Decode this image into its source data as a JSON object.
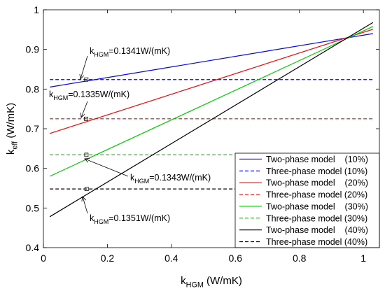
{
  "chart_data": {
    "type": "line",
    "xlabel": {
      "main": "k",
      "sub": "HGM",
      "unit": " (W/mK)"
    },
    "ylabel": {
      "main": "k",
      "sub": "eff",
      "unit": " (W/mK)"
    },
    "xlim": [
      0,
      1.05
    ],
    "ylim": [
      0.4,
      1.0
    ],
    "xticks": [
      0,
      0.2,
      0.4,
      0.6,
      0.8,
      1
    ],
    "xtick_labels": [
      "0",
      "0.2",
      "0.4",
      "0.6",
      "0.8",
      "1"
    ],
    "yticks": [
      0.4,
      0.5,
      0.6,
      0.7,
      0.8,
      0.9,
      1.0
    ],
    "ytick_labels": [
      "0.4",
      "0.5",
      "0.6",
      "0.7",
      "0.8",
      "0.9",
      "1"
    ],
    "grid": false,
    "legend_position": "lower-right",
    "series": [
      {
        "name": "Two-phase model    (10%)",
        "color": "#0000ff",
        "dash": "solid",
        "x": [
          0.02,
          1.03
        ],
        "y": [
          0.805,
          0.94
        ]
      },
      {
        "name": "Three-phase model (10%)",
        "color": "#0000ff",
        "dash": "dashed",
        "x": [
          0.02,
          1.03
        ],
        "y": [
          0.824,
          0.824
        ]
      },
      {
        "name": "Two-phase model    (20%)",
        "color": "#ff0000",
        "dash": "solid",
        "x": [
          0.02,
          1.03
        ],
        "y": [
          0.688,
          0.951
        ]
      },
      {
        "name": "Three-phase model (20%)",
        "color": "#ff0000",
        "dash": "dashed",
        "x": [
          0.02,
          1.03
        ],
        "y": [
          0.725,
          0.725
        ]
      },
      {
        "name": "Two-phase model    (30%)",
        "color": "#00cc00",
        "dash": "solid",
        "x": [
          0.02,
          1.03
        ],
        "y": [
          0.58,
          0.958
        ]
      },
      {
        "name": "Three-phase model (30%)",
        "color": "#00cc00",
        "dash": "dashed",
        "x": [
          0.02,
          1.03
        ],
        "y": [
          0.634,
          0.634
        ]
      },
      {
        "name": "Two-phase model    (40%)",
        "color": "#000000",
        "dash": "solid",
        "x": [
          0.02,
          1.03
        ],
        "y": [
          0.478,
          0.968
        ]
      },
      {
        "name": "Three-phase model (40%)",
        "color": "#000000",
        "dash": "dashed",
        "x": [
          0.02,
          1.03
        ],
        "y": [
          0.548,
          0.548
        ]
      }
    ],
    "annotations": [
      {
        "main": "k",
        "sub": "HGM",
        "value": "=0.1341W/(mK)",
        "x": 0.1341,
        "y": 0.824
      },
      {
        "main": "k",
        "sub": "HGM",
        "value": "=0.1335W/(mK)",
        "x": 0.1335,
        "y": 0.725
      },
      {
        "main": "k",
        "sub": "HGM",
        "value": "=0.1343W/(mK)",
        "x": 0.1343,
        "y": 0.634
      },
      {
        "main": "k",
        "sub": "HGM",
        "value": "=0.1351W/(mK)",
        "x": 0.1351,
        "y": 0.548
      }
    ]
  }
}
